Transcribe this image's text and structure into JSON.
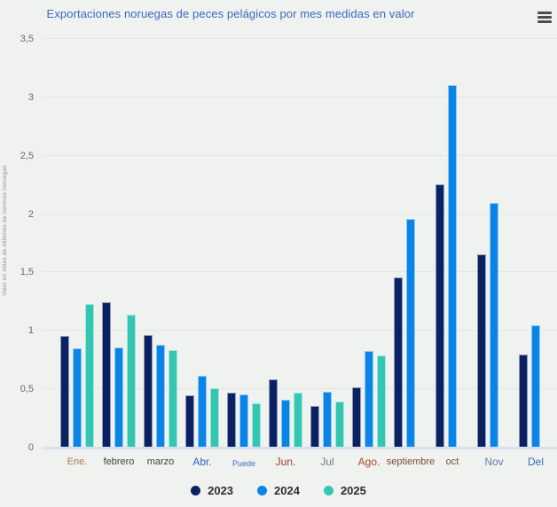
{
  "header": {
    "title": "Exportaciones noruegas de peces pelágicos por mes medidas en valor"
  },
  "chart_data": {
    "type": "bar",
    "title": "Exportaciones noruegas de peces pelágicos por mes medidas en valor",
    "ylabel": "Valor en miles de millones de coronas noruegas",
    "xlabel": "",
    "ylim": [
      0,
      3.5
    ],
    "yticks": [
      0,
      0.5,
      1,
      1.5,
      2,
      2.5,
      3,
      3.5
    ],
    "ytick_labels": [
      "0",
      "0,5",
      "1",
      "1,5",
      "2",
      "2,5",
      "3",
      "3,5"
    ],
    "grid": true,
    "legend_position": "bottom",
    "background_color": "#f0f2ef",
    "categories": [
      {
        "key": "ene",
        "label": "Ene.",
        "color": "#a87a52",
        "font_size": 11
      },
      {
        "key": "febrero",
        "label": "febrero",
        "color": "#3f3f3f",
        "font_size": 11
      },
      {
        "key": "marzo",
        "label": "marzo",
        "color": "#3f3f3f",
        "font_size": 11
      },
      {
        "key": "abr",
        "label": "Abr.",
        "color": "#2e66c0",
        "font_size": 12
      },
      {
        "key": "puede",
        "label": "Puede",
        "color": "#3b70c9",
        "font_size": 9
      },
      {
        "key": "jun",
        "label": "Jun.",
        "color": "#a33d28",
        "font_size": 12
      },
      {
        "key": "jul",
        "label": "Jul",
        "color": "#6e7b8a",
        "font_size": 12
      },
      {
        "key": "ago",
        "label": "Ago.",
        "color": "#a04a30",
        "font_size": 12
      },
      {
        "key": "septiembre",
        "label": "septiembre",
        "color": "#7a4a38",
        "font_size": 11
      },
      {
        "key": "oct",
        "label": "oct",
        "color": "#7a4a38",
        "font_size": 11
      },
      {
        "key": "nov",
        "label": "Nov",
        "color": "#5b7fae",
        "font_size": 12
      },
      {
        "key": "del",
        "label": "Del",
        "color": "#3668c4",
        "font_size": 12
      }
    ],
    "series": [
      {
        "name": "2023",
        "color": "#0a2163",
        "values": [
          0.95,
          1.24,
          0.96,
          0.44,
          0.46,
          0.58,
          0.35,
          0.51,
          1.45,
          2.25,
          1.65,
          0.79
        ]
      },
      {
        "name": "2024",
        "color": "#0b84e8",
        "values": [
          0.84,
          0.85,
          0.87,
          0.61,
          0.45,
          0.4,
          0.47,
          0.82,
          1.95,
          3.1,
          2.09,
          1.04
        ]
      },
      {
        "name": "2025",
        "color": "#33c7b3",
        "values": [
          1.22,
          1.13,
          0.83,
          0.5,
          0.37,
          0.46,
          0.39,
          0.78,
          null,
          null,
          null,
          null
        ]
      }
    ]
  }
}
